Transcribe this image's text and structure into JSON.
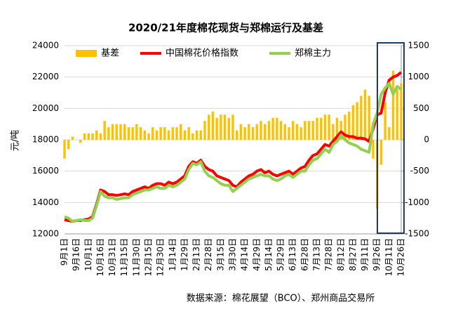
{
  "chart_data": {
    "type": "combo",
    "title": "2020/21年度棉花现货与郑棉运行及基差",
    "ylabel": "元/吨",
    "source": "数据来源：棉花展望（BCO）、郑州商品交易所",
    "categories": [
      "9月1日",
      null,
      null,
      "9月16日",
      null,
      null,
      "10月1日",
      null,
      null,
      "10月16日",
      null,
      null,
      "10月31日",
      null,
      null,
      "11月15日",
      null,
      null,
      "11月30日",
      null,
      null,
      "12月15日",
      null,
      null,
      "12月30日",
      null,
      null,
      "1月14日",
      null,
      null,
      "1月29日",
      null,
      null,
      "2月13日",
      null,
      null,
      "2月28日",
      null,
      null,
      "3月15日",
      null,
      null,
      "3月30日",
      null,
      null,
      "4月14日",
      null,
      null,
      "4月29日",
      null,
      null,
      "5月14日",
      null,
      null,
      "5月29日",
      null,
      null,
      "6月13日",
      null,
      null,
      "6月28日",
      null,
      null,
      "7月13日",
      null,
      null,
      "7月28日",
      null,
      null,
      "8月12日",
      null,
      null,
      "8月27日",
      null,
      null,
      "9月11日",
      null,
      null,
      "9月26日",
      null,
      null,
      "10月11日",
      null,
      null,
      "10月26日"
    ],
    "series": [
      {
        "name": "基差",
        "type": "bar",
        "axis": "y2",
        "color": "#FFC000",
        "values": [
          -300,
          -150,
          50,
          0,
          -50,
          100,
          100,
          100,
          150,
          100,
          300,
          200,
          250,
          250,
          250,
          250,
          200,
          200,
          250,
          200,
          150,
          100,
          200,
          150,
          200,
          200,
          150,
          200,
          200,
          250,
          150,
          200,
          100,
          150,
          150,
          300,
          400,
          450,
          350,
          400,
          400,
          350,
          400,
          150,
          250,
          200,
          250,
          200,
          250,
          300,
          250,
          300,
          350,
          350,
          300,
          250,
          200,
          300,
          250,
          200,
          300,
          300,
          300,
          350,
          350,
          400,
          400,
          250,
          350,
          300,
          400,
          450,
          550,
          600,
          700,
          800,
          700,
          -300,
          -1100,
          -400,
          600,
          200,
          1100,
          800,
          900
        ]
      },
      {
        "name": "中国棉花价格指数",
        "type": "line",
        "color": "#FF0000",
        "values": [
          12900,
          12850,
          12800,
          12850,
          12850,
          12900,
          12950,
          13100,
          13900,
          14800,
          14700,
          14500,
          14500,
          14450,
          14500,
          14550,
          14500,
          14700,
          14800,
          14900,
          15000,
          14900,
          15100,
          15200,
          15200,
          15100,
          15300,
          15200,
          15300,
          15500,
          15700,
          16300,
          16600,
          16500,
          16700,
          16300,
          16100,
          16000,
          15700,
          15600,
          15500,
          15400,
          15100,
          15000,
          15300,
          15500,
          15700,
          15800,
          16000,
          16100,
          15900,
          16000,
          15800,
          15700,
          15800,
          15900,
          16000,
          15800,
          16000,
          16200,
          16300,
          16700,
          17000,
          17100,
          17400,
          17700,
          17600,
          17900,
          18200,
          18500,
          18300,
          18200,
          18200,
          18100,
          18100,
          18050,
          17900,
          18700,
          19600,
          19700,
          21000,
          21800,
          22000,
          22100,
          22300
        ]
      },
      {
        "name": "郑棉主力",
        "type": "line",
        "color": "#92D050",
        "values": [
          13100,
          13000,
          12800,
          12850,
          12900,
          12850,
          12850,
          13000,
          13800,
          14700,
          14400,
          14300,
          14300,
          14200,
          14250,
          14300,
          14300,
          14500,
          14600,
          14700,
          14800,
          14800,
          14900,
          15000,
          14900,
          14900,
          15100,
          15000,
          15100,
          15300,
          15500,
          16100,
          16500,
          16400,
          16600,
          16000,
          15700,
          15600,
          15400,
          15200,
          15100,
          15100,
          14700,
          14900,
          15100,
          15300,
          15500,
          15600,
          15700,
          15800,
          15700,
          15700,
          15500,
          15400,
          15500,
          15700,
          15800,
          15600,
          15800,
          16000,
          16000,
          16400,
          16700,
          16800,
          17100,
          17400,
          17200,
          17700,
          17900,
          18300,
          18000,
          17800,
          17700,
          17600,
          17400,
          17300,
          17200,
          19000,
          19700,
          20900,
          21300,
          21600,
          20900,
          21400,
          21200
        ]
      }
    ],
    "ylim": [
      12000,
      24000
    ],
    "yticks": [
      12000,
      14000,
      16000,
      18000,
      20000,
      22000,
      24000
    ],
    "y2lim": [
      -1500,
      1500
    ],
    "y2ticks": [
      -1500,
      -1000,
      -500,
      0,
      500,
      1000,
      1500
    ],
    "grid": true
  }
}
